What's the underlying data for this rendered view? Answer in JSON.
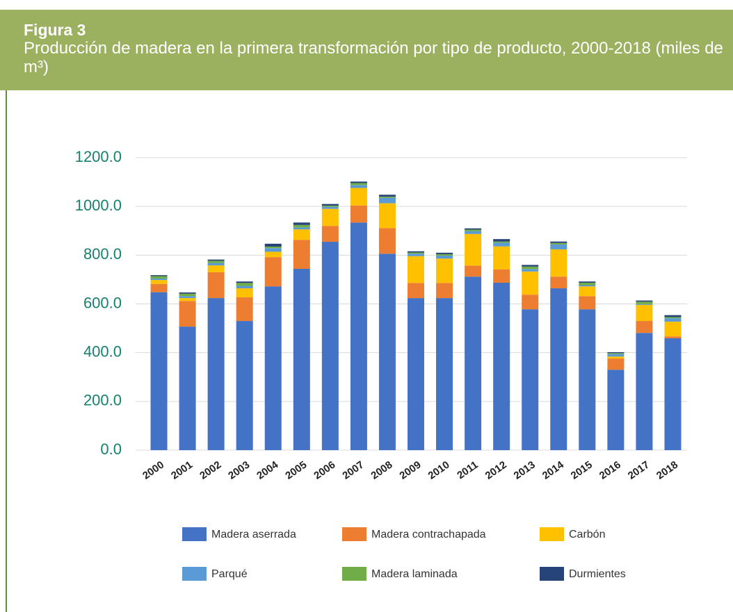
{
  "chart_data": {
    "type": "stacked_bar",
    "title": "Figura 3",
    "subtitle": "Producción de madera en la primera transformación por tipo de producto, 2000-2018 (miles de m³)",
    "categories": [
      "2000",
      "2001",
      "2002",
      "2003",
      "2004",
      "2005",
      "2006",
      "2007",
      "2008",
      "2009",
      "2010",
      "2011",
      "2012",
      "2013",
      "2014",
      "2015",
      "2016",
      "2017",
      "2018"
    ],
    "series": [
      {
        "name": "Madera aserrada",
        "color": "#4472c4",
        "values": [
          648,
          507,
          624,
          530,
          672,
          744,
          855,
          934,
          806,
          624,
          624,
          712,
          687,
          578,
          664,
          578,
          330,
          481,
          459
        ]
      },
      {
        "name": "Madera contrachapada",
        "color": "#ed7d31",
        "values": [
          34,
          105,
          106,
          97,
          120,
          119,
          65,
          70,
          105,
          62,
          62,
          45,
          55,
          60,
          48,
          54,
          46,
          49,
          8
        ]
      },
      {
        "name": "Carbón",
        "color": "#ffc000",
        "values": [
          16,
          12,
          28,
          37,
          22,
          43,
          70,
          72,
          102,
          110,
          100,
          130,
          94,
          95,
          112,
          40,
          8,
          66,
          60
        ]
      },
      {
        "name": "Parqué",
        "color": "#5b9bd5",
        "values": [
          6,
          8,
          10,
          10,
          15,
          8,
          8,
          12,
          22,
          10,
          12,
          12,
          15,
          10,
          20,
          5,
          10,
          3,
          14
        ]
      },
      {
        "name": "Madera laminada",
        "color": "#70ad47",
        "values": [
          10,
          10,
          9,
          12,
          6,
          10,
          5,
          8,
          5,
          5,
          6,
          6,
          5,
          10,
          6,
          10,
          4,
          10,
          5
        ]
      },
      {
        "name": "Durmientes",
        "color": "#264478",
        "values": [
          4,
          5,
          5,
          6,
          12,
          10,
          7,
          6,
          8,
          5,
          6,
          5,
          10,
          7,
          6,
          5,
          4,
          5,
          8
        ]
      }
    ],
    "ylim": [
      0,
      1200
    ],
    "yticks": [
      {
        "value": 0,
        "label": "0.0"
      },
      {
        "value": 200,
        "label": "200.0"
      },
      {
        "value": 400,
        "label": "400.0"
      },
      {
        "value": 600,
        "label": "600.0"
      },
      {
        "value": 800,
        "label": "800.0"
      },
      {
        "value": 1000,
        "label": "1000.0"
      },
      {
        "value": 1200,
        "label": "1200.0"
      }
    ],
    "grid": true,
    "legend": "bottom"
  }
}
